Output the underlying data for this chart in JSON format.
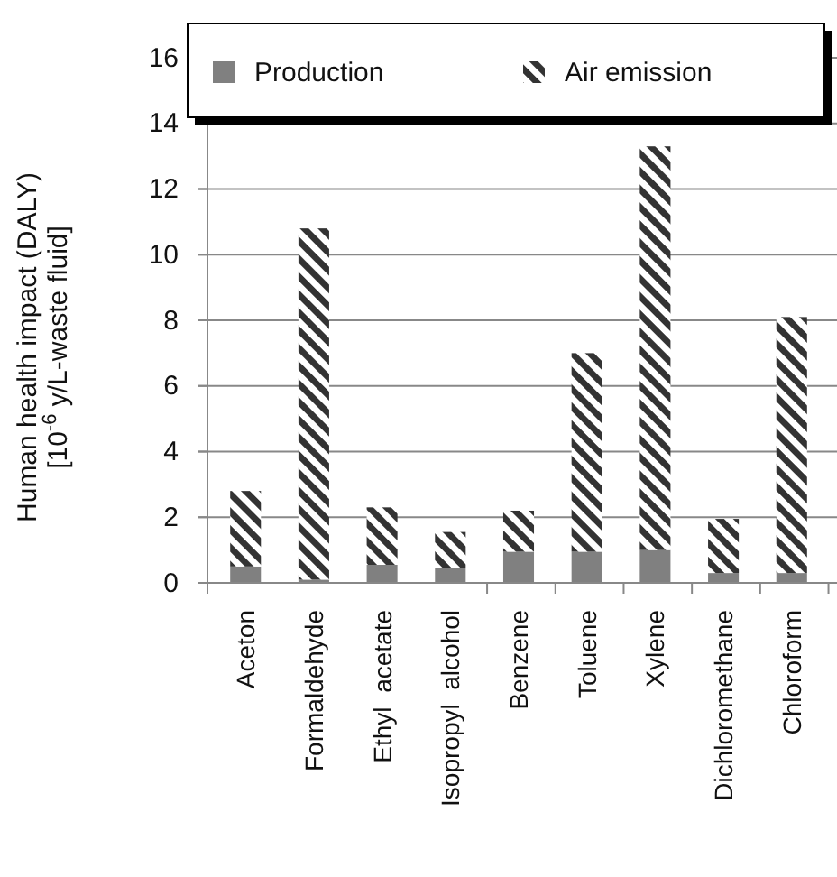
{
  "chart_data": {
    "type": "bar",
    "ylabel": "Human health impact (DALY)\n[10$^{-6}$ y/L-waste fluid]",
    "categories": [
      "Aceton",
      "Formaldehyde",
      "Ethyl  acetate",
      "Isopropyl  alcohol",
      "Benzene",
      "Toluene",
      "Xylene",
      "Dichloromethane",
      "Chloroform"
    ],
    "stacked": true,
    "series": [
      {
        "name": "Production",
        "color": "#808080",
        "values": [
          0.5,
          0.1,
          0.55,
          0.45,
          0.95,
          0.95,
          1.0,
          0.3,
          0.3
        ]
      },
      {
        "name": "Air emission",
        "color": "#333333",
        "values": [
          2.3,
          10.7,
          1.75,
          1.1,
          1.25,
          6.05,
          12.3,
          1.65,
          7.8
        ]
      }
    ],
    "ylim": [
      0,
      16
    ],
    "yticks": [
      0,
      2,
      4,
      6,
      8,
      10,
      12,
      14,
      16
    ],
    "grid": "y",
    "legend": "top"
  }
}
